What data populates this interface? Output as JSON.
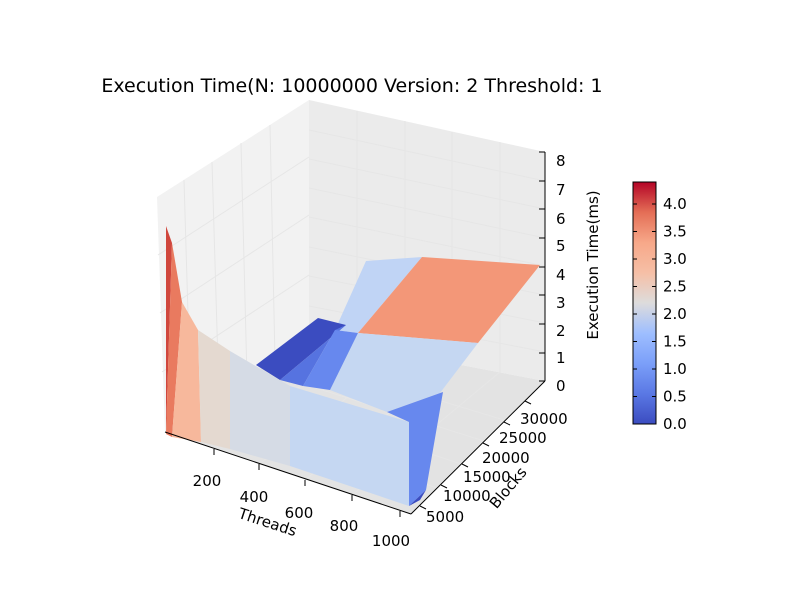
{
  "chart_data": {
    "type": "surface3d",
    "title": "Execution Time(N: 10000000 Version: 2 Threshold: 1",
    "xlabel": "Threads",
    "ylabel": "Blocks",
    "zlabel": "Execution Time(ms)",
    "x_ticks": [
      200,
      400,
      600,
      800,
      1000
    ],
    "y_ticks": [
      5000,
      10000,
      15000,
      20000,
      25000,
      30000
    ],
    "z_ticks": [
      0,
      1,
      2,
      3,
      4,
      5,
      6,
      7,
      8
    ],
    "zlim": [
      0,
      8
    ],
    "colormap": "coolwarm",
    "colorbar": {
      "min": 0.0,
      "max": 4.4,
      "ticks": [
        "0.0",
        "0.5",
        "1.0",
        "1.5",
        "2.0",
        "2.5",
        "3.0",
        "3.5",
        "4.0"
      ]
    },
    "approx_surface": [
      {
        "threads": 32,
        "blocks": 0,
        "time_ms": 4.4
      },
      {
        "threads": 64,
        "blocks": 0,
        "time_ms": 3.0
      },
      {
        "threads": 128,
        "blocks": 0,
        "time_ms": 2.6
      },
      {
        "threads": 256,
        "blocks": 0,
        "time_ms": 2.2
      },
      {
        "threads": 512,
        "blocks": 0,
        "time_ms": 2.0
      },
      {
        "threads": 1024,
        "blocks": 0,
        "time_ms": 1.9
      },
      {
        "threads": 1024,
        "blocks": 10000,
        "time_ms": 0.1
      },
      {
        "threads": 1024,
        "blocks": 20000,
        "time_ms": 1.8
      },
      {
        "threads": 1024,
        "blocks": 32000,
        "time_ms": 3.3
      }
    ]
  }
}
